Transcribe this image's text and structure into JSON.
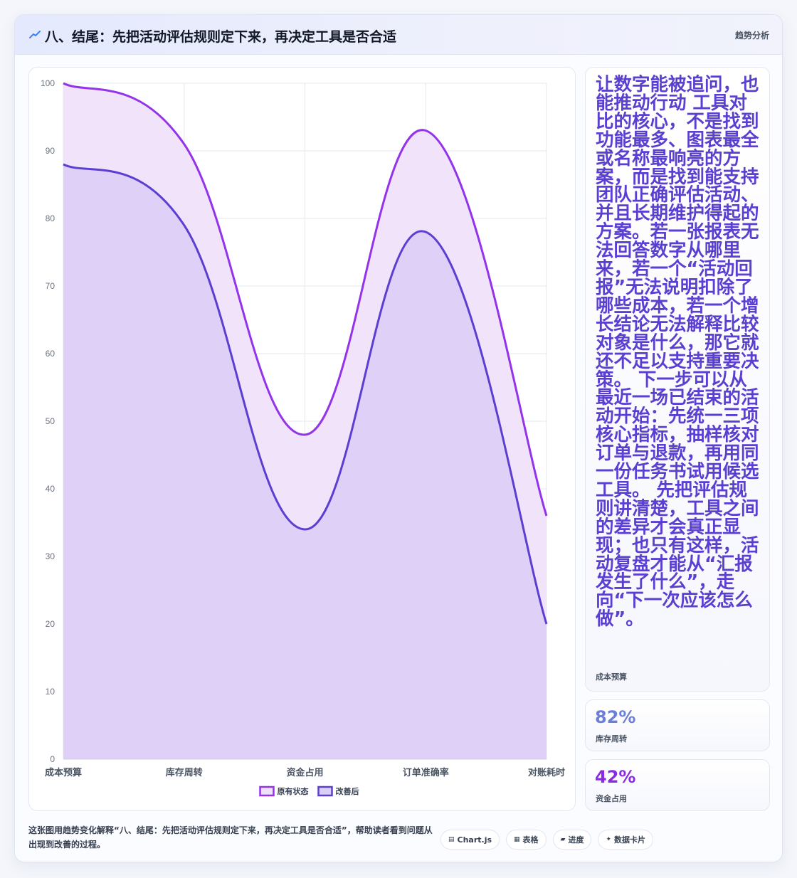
{
  "header": {
    "icon": "trend-line-icon",
    "title": "八、结尾：先把活动评估规则定下来，再决定工具是否合适",
    "tag": "趋势分析"
  },
  "chart_data": {
    "type": "area",
    "categories": [
      "成本预算",
      "库存周转",
      "资金占用",
      "订单准确率",
      "对账耗时"
    ],
    "series": [
      {
        "name": "原有状态",
        "values": [
          100,
          91,
          48,
          93,
          36
        ],
        "color": "#9333ea",
        "fill": "#efe1fa"
      },
      {
        "name": "改善后",
        "values": [
          88,
          79,
          34,
          78,
          20
        ],
        "color": "#5b3fd1",
        "fill": "#dccff7"
      }
    ],
    "yticks": [
      0,
      10,
      20,
      30,
      40,
      50,
      60,
      70,
      80,
      90,
      100
    ],
    "ylim": [
      0,
      100
    ],
    "grid": true,
    "legend_position": "bottom-center",
    "smooth": true
  },
  "side": {
    "big_text": "让数字能被追问，也能推动行动 工具对比的核心，不是找到功能最多、图表最全或名称最响亮的方案，而是找到能支持团队正确评估活动、并且长期维护得起的方案。若一张报表无法回答数字从哪里来，若一个“活动回报”无法说明扣除了哪些成本，若一个增长结论无法解释比较对象是什么，那它就还不足以支持重要决策。 下一步可以从最近一场已结束的活动开始：先统一三项核心指标，抽样核对订单与退款，再用同一份任务书试用候选工具。 先把评估规则讲清楚，工具之间的差异才会真正显现；也只有这样，活动复盘才能从“汇报发生了什么”，走向“下一次应该怎么做”。",
    "big_label": "成本预算",
    "metric1_value": "82%",
    "metric1_label": "库存周转",
    "metric1_color": "#6b7fd8",
    "metric2_value": "42%",
    "metric2_label": "资金占用",
    "metric2_color": "#8a2be2"
  },
  "footer": {
    "text": "这张图用趋势变化解释“八、结尾：先把活动评估规则定下来，再决定工具是否合适”，帮助读者看到问题从出现到改善的过程。",
    "chips": [
      {
        "icon": "chart-icon",
        "glyph": "▤",
        "label": "Chart.js"
      },
      {
        "icon": "table-icon",
        "glyph": "▦",
        "label": "表格"
      },
      {
        "icon": "progress-icon",
        "glyph": "▰",
        "label": "进度"
      },
      {
        "icon": "sparkle-icon",
        "glyph": "✦",
        "label": "数据卡片"
      }
    ]
  }
}
